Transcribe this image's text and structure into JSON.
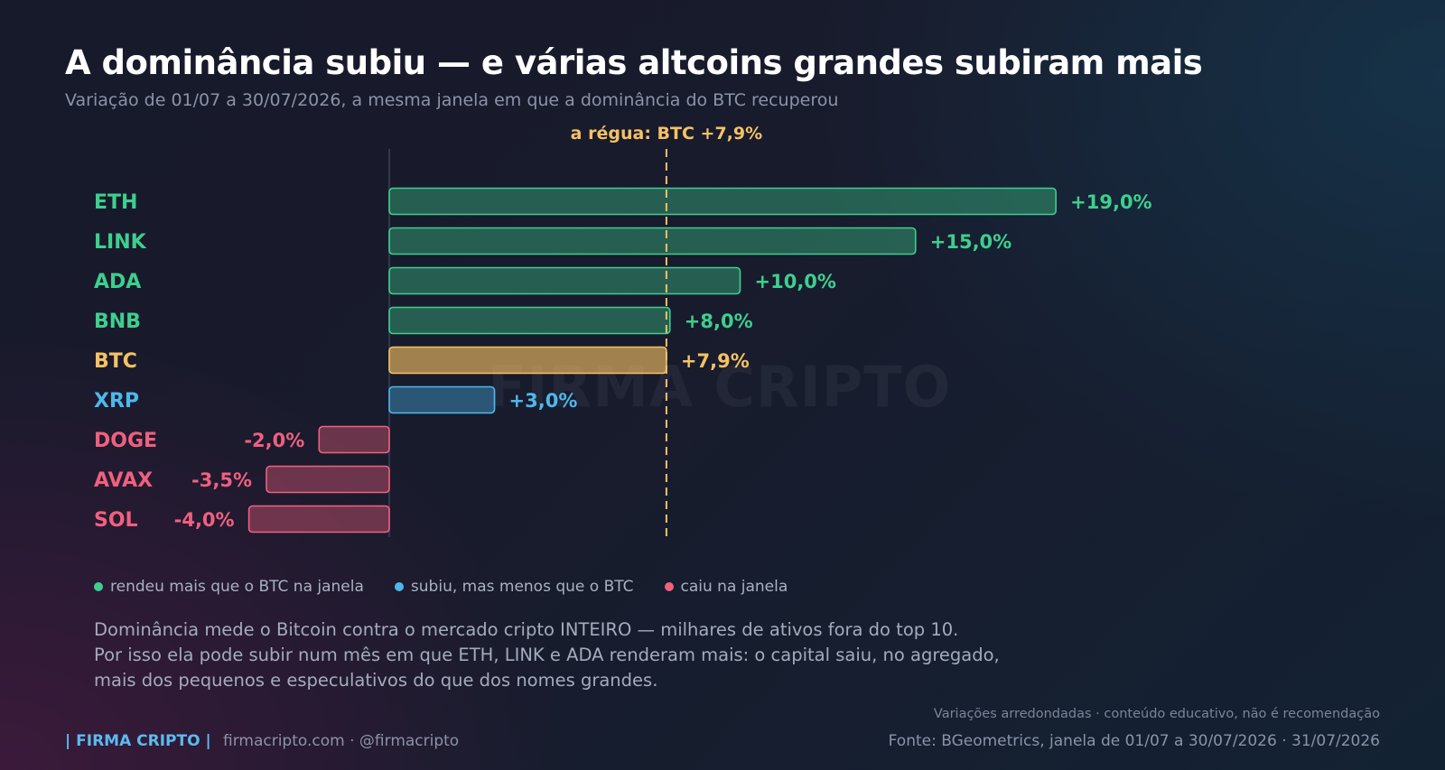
{
  "header": {
    "title": "A dominância subiu — e várias altcoins grandes subiram mais",
    "subtitle": "Variação de 01/07 a 30/07/2026, a mesma janela em que a dominância do BTC recuperou"
  },
  "watermark": "FIRMA CRIPTO",
  "chart_data": {
    "type": "bar",
    "orientation": "horizontal",
    "title": "A dominância subiu — e várias altcoins grandes subiram mais",
    "subtitle": "Variação de 01/07 a 30/07/2026, a mesma janela em que a dominância do BTC recuperou",
    "categories": [
      "ETH",
      "LINK",
      "ADA",
      "BNB",
      "BTC",
      "XRP",
      "DOGE",
      "AVAX",
      "SOL"
    ],
    "values": [
      19.0,
      15.0,
      10.0,
      8.0,
      7.9,
      3.0,
      -2.0,
      -3.5,
      -4.0
    ],
    "value_labels": [
      "+19,0%",
      "+15,0%",
      "+10,0%",
      "+8,0%",
      "+7,9%",
      "+3,0%",
      "-2,0%",
      "-3,5%",
      "-4,0%"
    ],
    "groups": [
      "above_btc",
      "above_btc",
      "above_btc",
      "above_btc",
      "btc",
      "below_btc",
      "fell",
      "fell",
      "fell"
    ],
    "xlim": [
      -4,
      19
    ],
    "reference_line": {
      "value": 7.9,
      "label": "a régua: BTC +7,9%"
    },
    "grid": false,
    "colors": {
      "above_btc": "#3ecf8e",
      "btc": "#f5c165",
      "below_btc": "#4db8ec",
      "fell": "#f0607f"
    }
  },
  "legend": {
    "items": [
      {
        "label": "rendeu mais que o BTC na janela",
        "color": "#3ecf8e"
      },
      {
        "label": "subiu, mas menos que o BTC",
        "color": "#4db8ec"
      },
      {
        "label": "caiu na janela",
        "color": "#f0607f"
      }
    ]
  },
  "note": {
    "lines": [
      "Dominância mede o Bitcoin contra o mercado cripto INTEIRO — milhares de ativos fora do top 10.",
      "Por isso ela pode subir num mês em que ETH, LINK e ADA renderam mais: o capital saiu, no agregado,",
      "mais dos pequenos e especulativos do que dos nomes grandes."
    ]
  },
  "footer": {
    "brand": "| FIRMA CRIPTO |",
    "links": "firmacripto.com  ·  @firmacripto",
    "disclaimer": "Variações arredondadas · conteúdo educativo, não é recomendação",
    "source": "Fonte: BGeometrics, janela de 01/07 a 30/07/2026  ·  31/07/2026"
  }
}
